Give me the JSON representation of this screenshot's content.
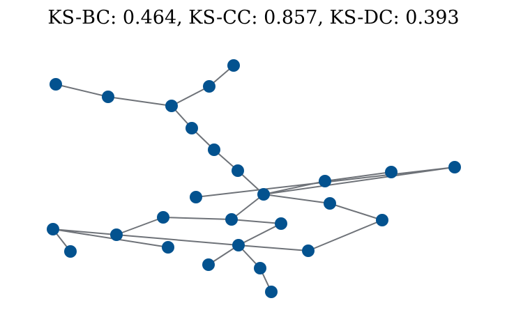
{
  "title": "KS-BC: 0.464, KS-CC: 0.857, KS-DC: 0.393",
  "colors": {
    "node": "#03528f",
    "edge": "#6e7278",
    "background": "#ffffff"
  },
  "graph": {
    "node_count": 27,
    "edges": [
      [
        0,
        1
      ],
      [
        1,
        2
      ],
      [
        2,
        3
      ],
      [
        3,
        4
      ],
      [
        2,
        5
      ],
      [
        5,
        6
      ],
      [
        6,
        7
      ],
      [
        7,
        8
      ],
      [
        8,
        9
      ],
      [
        9,
        10
      ],
      [
        8,
        11
      ],
      [
        11,
        12
      ],
      [
        8,
        13
      ],
      [
        13,
        14
      ],
      [
        8,
        15
      ],
      [
        15,
        16
      ],
      [
        16,
        17
      ],
      [
        15,
        18
      ],
      [
        17,
        19
      ],
      [
        19,
        20
      ],
      [
        19,
        21
      ],
      [
        17,
        22
      ],
      [
        18,
        22
      ],
      [
        22,
        23
      ],
      [
        22,
        24
      ],
      [
        24,
        25
      ],
      [
        22,
        26
      ],
      [
        26,
        14
      ]
    ]
  }
}
